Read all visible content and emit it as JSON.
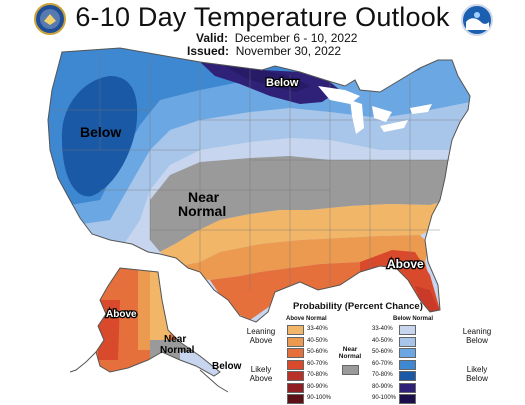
{
  "header": {
    "title": "6-10 Day Temperature Outlook",
    "valid_label": "Valid:",
    "valid_value": "December 6 - 10, 2022",
    "issued_label": "Issued:",
    "issued_value": "November 30, 2022"
  },
  "logos": {
    "left": "doc-seal-icon",
    "right": "noaa-logo-icon"
  },
  "map": {
    "labels": {
      "below_nw": "Below",
      "below_mn": "Below",
      "near_1": "Near",
      "near_2": "Normal",
      "above_se": "Above",
      "above_ak": "Above",
      "near_ak_1": "Near",
      "near_ak_2": "Normal",
      "below_ak": "Below"
    },
    "category_colors": {
      "above_33_40": "#f1b667",
      "above_40_50": "#ec9a4f",
      "above_50_60": "#e5703c",
      "above_60_70": "#d94a2c",
      "near_normal": "#9a9a9a",
      "below_33_40": "#c7d6ee",
      "below_40_50": "#a8c6ea",
      "below_50_60": "#6ba7e3",
      "below_60_70": "#3e87d1",
      "below_70_80": "#1a59a6",
      "below_80_90": "#2e2177"
    }
  },
  "legend": {
    "title": "Probability (Percent Chance)",
    "above_header": "Above Normal",
    "below_header": "Below Normal",
    "near_label_1": "Near",
    "near_label_2": "Normal",
    "leaning_above_1": "Leaning",
    "leaning_above_2": "Above",
    "likely_above_1": "Likely",
    "likely_above_2": "Above",
    "leaning_below_1": "Leaning",
    "leaning_below_2": "Below",
    "likely_below_1": "Likely",
    "likely_below_2": "Below",
    "above_bins": [
      {
        "label": "33-40%",
        "color": "#f1b667"
      },
      {
        "label": "40-50%",
        "color": "#ec9a4f"
      },
      {
        "label": "50-60%",
        "color": "#e5703c"
      },
      {
        "label": "60-70%",
        "color": "#d94a2c"
      },
      {
        "label": "70-80%",
        "color": "#b8322a"
      },
      {
        "label": "80-90%",
        "color": "#8f1f22"
      },
      {
        "label": "90-100%",
        "color": "#5c0f14"
      }
    ],
    "below_bins": [
      {
        "label": "33-40%",
        "color": "#c7d6ee"
      },
      {
        "label": "40-50%",
        "color": "#a8c6ea"
      },
      {
        "label": "50-60%",
        "color": "#6ba7e3"
      },
      {
        "label": "60-70%",
        "color": "#3e87d1"
      },
      {
        "label": "70-80%",
        "color": "#1a59a6"
      },
      {
        "label": "80-90%",
        "color": "#2e2177"
      },
      {
        "label": "90-100%",
        "color": "#1a0f4a"
      }
    ],
    "near_color": "#9a9a9a"
  }
}
